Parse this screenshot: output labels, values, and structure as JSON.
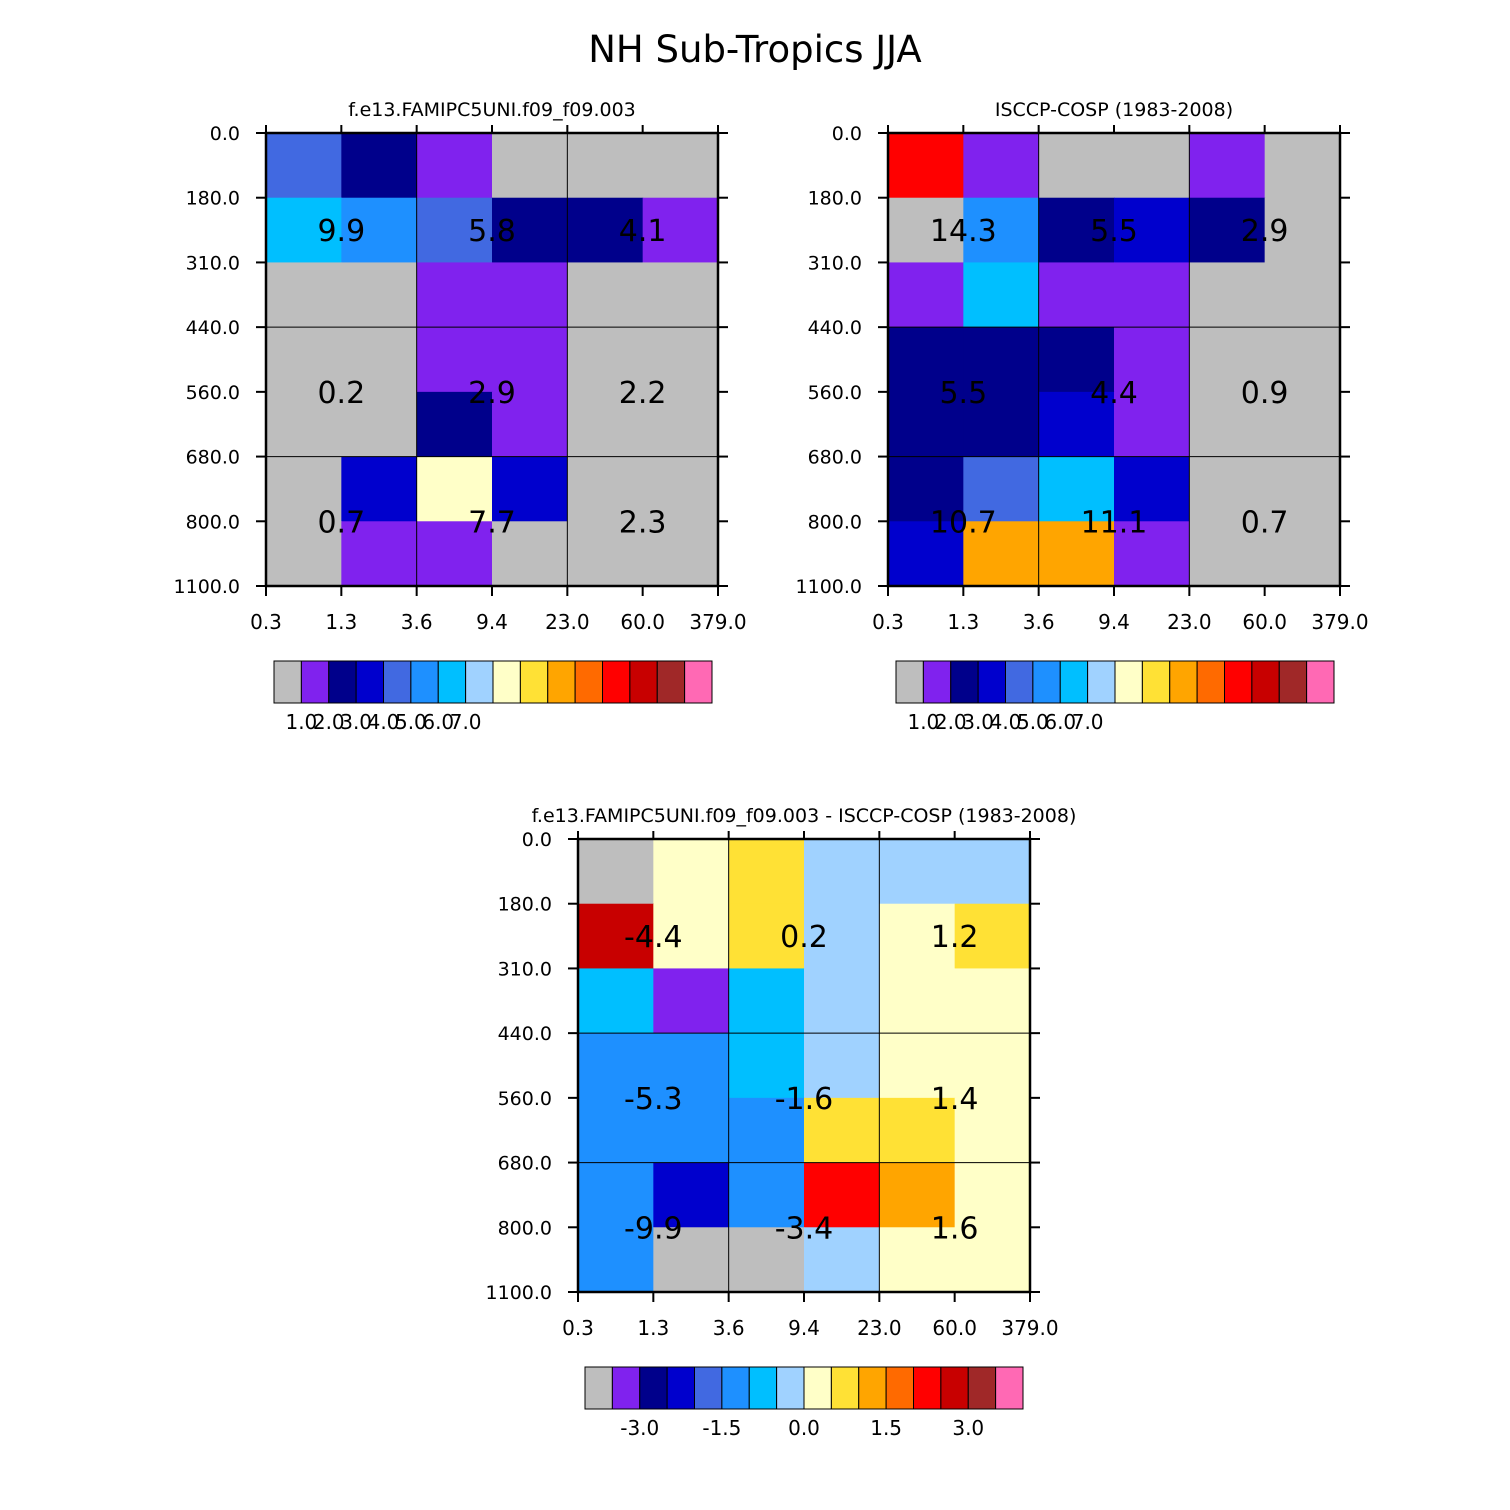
{
  "figure": {
    "title": "NH Sub-Tropics JJA"
  },
  "palette": {
    "levels": [
      "#bebebe",
      "#8022ee",
      "#00008b",
      "#0000cd",
      "#4169e1",
      "#1e90ff",
      "#00bfff",
      "#a0d2ff",
      "#ffffc8",
      "#ffe135",
      "#ffa500",
      "#ff6a00",
      "#ff0000",
      "#c80000",
      "#a02828",
      "#ff69b4"
    ]
  },
  "axes": {
    "x_ticks": [
      "0.3",
      "1.3",
      "3.6",
      "9.4",
      "23.0",
      "60.0",
      "379.0"
    ],
    "y_ticks": [
      "0.0",
      "180.0",
      "310.0",
      "440.0",
      "560.0",
      "680.0",
      "800.0",
      "1100.0"
    ]
  },
  "chart_data": [
    {
      "type": "heatmap",
      "title": "f.e13.FAMIPC5UNI.f09_f09.003",
      "grid": [
        [
          4,
          2,
          1,
          0,
          0,
          0
        ],
        [
          6,
          5,
          4,
          2,
          2,
          1
        ],
        [
          0,
          0,
          1,
          1,
          0,
          0
        ],
        [
          0,
          0,
          1,
          1,
          0,
          0
        ],
        [
          0,
          0,
          2,
          1,
          0,
          0
        ],
        [
          0,
          3,
          8,
          3,
          0,
          0
        ],
        [
          0,
          1,
          1,
          0,
          0,
          0
        ]
      ],
      "boxes": [
        [
          "9.9",
          "5.8",
          "4.1"
        ],
        [
          "0.2",
          "2.9",
          "2.2"
        ],
        [
          "0.7",
          "7.7",
          "2.3"
        ]
      ],
      "colorbar": {
        "labels": [
          "1.0",
          "2.0",
          "3.0",
          "4.0",
          "5.0",
          "6.0",
          "7.0"
        ]
      }
    },
    {
      "type": "heatmap",
      "title": "ISCCP-COSP (1983-2008)",
      "grid": [
        [
          12,
          1,
          0,
          0,
          1,
          0
        ],
        [
          0,
          5,
          2,
          3,
          2,
          0
        ],
        [
          1,
          6,
          1,
          1,
          0,
          0
        ],
        [
          2,
          2,
          2,
          1,
          0,
          0
        ],
        [
          2,
          2,
          3,
          1,
          0,
          0
        ],
        [
          2,
          4,
          6,
          3,
          0,
          0
        ],
        [
          3,
          10,
          10,
          1,
          0,
          0
        ]
      ],
      "boxes": [
        [
          "14.3",
          "5.5",
          "2.9"
        ],
        [
          "5.5",
          "4.4",
          "0.9"
        ],
        [
          "10.7",
          "11.1",
          "0.7"
        ]
      ],
      "colorbar": {
        "labels": [
          "1.0",
          "2.0",
          "3.0",
          "4.0",
          "5.0",
          "6.0",
          "7.0"
        ]
      }
    },
    {
      "type": "heatmap",
      "title": "f.e13.FAMIPC5UNI.f09_f09.003 - ISCCP-COSP (1983-2008)",
      "grid": [
        [
          0,
          8,
          9,
          7,
          7,
          7
        ],
        [
          13,
          8,
          9,
          7,
          8,
          9
        ],
        [
          6,
          1,
          6,
          7,
          8,
          8
        ],
        [
          5,
          5,
          6,
          7,
          8,
          8
        ],
        [
          5,
          5,
          5,
          9,
          9,
          8
        ],
        [
          5,
          3,
          5,
          12,
          10,
          8
        ],
        [
          5,
          0,
          0,
          7,
          8,
          8
        ]
      ],
      "boxes": [
        [
          "-4.4",
          "0.2",
          "1.2"
        ],
        [
          "-5.3",
          "-1.6",
          "1.4"
        ],
        [
          "-9.9",
          "-3.4",
          "1.6"
        ]
      ],
      "colorbar": {
        "labels": [
          "-3.0",
          "-1.5",
          "0.0",
          "1.5",
          "3.0"
        ]
      }
    }
  ]
}
